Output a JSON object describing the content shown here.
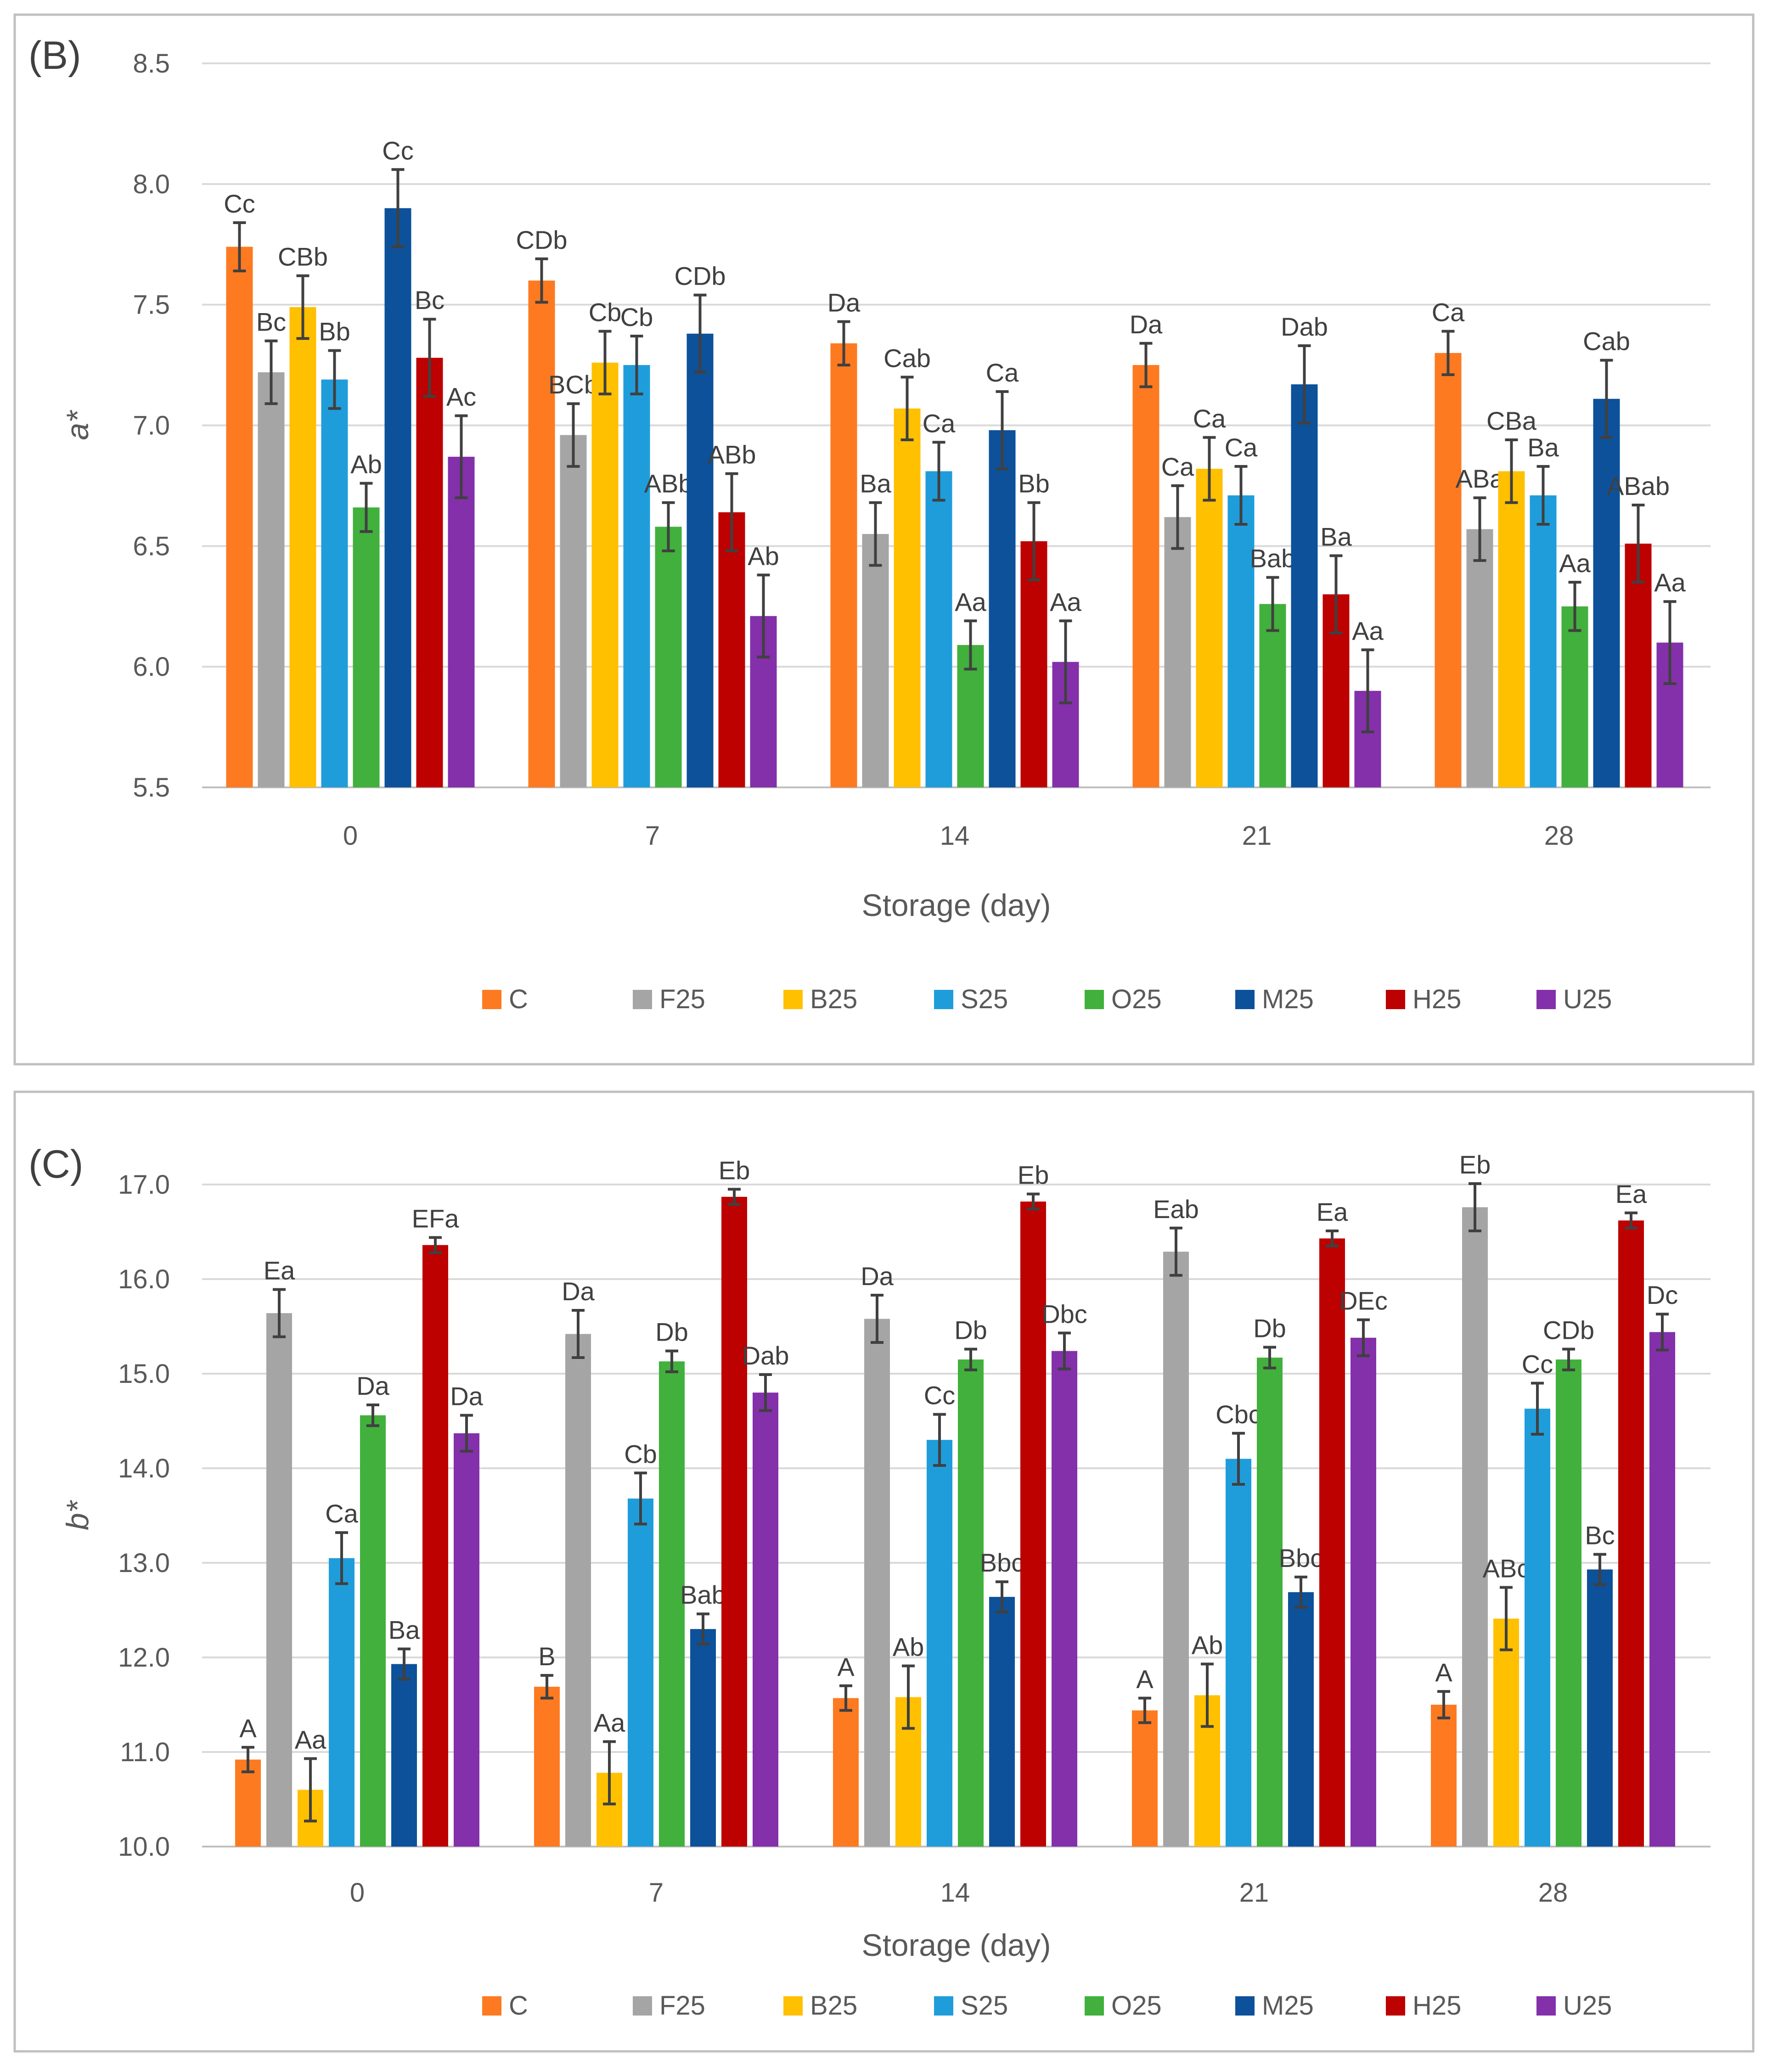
{
  "chart_data": [
    {
      "type": "bar",
      "panel_label": "(B)",
      "title": "",
      "xlabel": "Storage (day)",
      "ylabel": "a*",
      "ylim": [
        5.5,
        8.5
      ],
      "yticks": [
        "5.5",
        "6.0",
        "6.5",
        "7.0",
        "7.5",
        "8.0",
        "8.5"
      ],
      "grid": true,
      "legend_position": "bottom",
      "categories": [
        "0",
        "7",
        "14",
        "21",
        "28"
      ],
      "series": [
        {
          "name": "C",
          "color": "#fd7a21",
          "values": [
            7.74,
            7.6,
            7.34,
            7.25,
            7.3
          ],
          "errors": [
            0.1,
            0.09,
            0.09,
            0.09,
            0.09
          ],
          "labels": [
            "Cc",
            "CDb",
            "Da",
            "Da",
            "Ca"
          ]
        },
        {
          "name": "F25",
          "color": "#a5a5a5",
          "values": [
            7.22,
            6.96,
            6.55,
            6.62,
            6.57
          ],
          "errors": [
            0.13,
            0.13,
            0.13,
            0.13,
            0.13
          ],
          "labels": [
            "Bc",
            "BCb",
            "Ba",
            "Ca",
            "ABa"
          ]
        },
        {
          "name": "B25",
          "color": "#ffc000",
          "values": [
            7.49,
            7.26,
            7.07,
            6.82,
            6.81
          ],
          "errors": [
            0.13,
            0.13,
            0.13,
            0.13,
            0.13
          ],
          "labels": [
            "CBb",
            "Cb",
            "Cab",
            "Ca",
            "CBa"
          ]
        },
        {
          "name": "S25",
          "color": "#1f9ddb",
          "values": [
            7.19,
            7.25,
            6.81,
            6.71,
            6.71
          ],
          "errors": [
            0.12,
            0.12,
            0.12,
            0.12,
            0.12
          ],
          "labels": [
            "Bb",
            "Cb",
            "Ca",
            "Ca",
            "Ba"
          ]
        },
        {
          "name": "O25",
          "color": "#41b03c",
          "values": [
            6.66,
            6.58,
            6.09,
            6.26,
            6.25
          ],
          "errors": [
            0.1,
            0.1,
            0.1,
            0.11,
            0.1
          ],
          "labels": [
            "Ab",
            "ABb",
            "Aa",
            "Bab",
            "Aa"
          ]
        },
        {
          "name": "M25",
          "color": "#0c519a",
          "values": [
            7.9,
            7.38,
            6.98,
            7.17,
            7.11
          ],
          "errors": [
            0.16,
            0.16,
            0.16,
            0.16,
            0.16
          ],
          "labels": [
            "Cc",
            "CDb",
            "Ca",
            "Dab",
            "Cab"
          ]
        },
        {
          "name": "H25",
          "color": "#bd0000",
          "values": [
            7.28,
            6.64,
            6.52,
            6.3,
            6.51
          ],
          "errors": [
            0.16,
            0.16,
            0.16,
            0.16,
            0.16
          ],
          "labels": [
            "Bc",
            "ABb",
            "Bb",
            "Ba",
            "ABab"
          ]
        },
        {
          "name": "U25",
          "color": "#8330aa",
          "values": [
            6.87,
            6.21,
            6.02,
            5.9,
            6.1
          ],
          "errors": [
            0.17,
            0.17,
            0.17,
            0.17,
            0.17
          ],
          "labels": [
            "Ac",
            "Ab",
            "Aa",
            "Aa",
            "Aa"
          ]
        }
      ]
    },
    {
      "type": "bar",
      "panel_label": "(C)",
      "title": "",
      "xlabel": "Storage (day)",
      "ylabel": "b*",
      "ylim": [
        10.0,
        17.0
      ],
      "yticks": [
        "10.0",
        "11.0",
        "12.0",
        "13.0",
        "14.0",
        "15.0",
        "16.0",
        "17.0"
      ],
      "grid": true,
      "legend_position": "bottom",
      "categories": [
        "0",
        "7",
        "14",
        "21",
        "28"
      ],
      "series": [
        {
          "name": "C",
          "color": "#fd7a21",
          "values": [
            10.92,
            11.69,
            11.57,
            11.44,
            11.5
          ],
          "errors": [
            0.13,
            0.12,
            0.13,
            0.13,
            0.14
          ],
          "labels": [
            "A",
            "B",
            "A",
            "A",
            "A"
          ]
        },
        {
          "name": "F25",
          "color": "#a5a5a5",
          "values": [
            15.64,
            15.42,
            15.58,
            16.29,
            16.76
          ],
          "errors": [
            0.25,
            0.25,
            0.25,
            0.25,
            0.25
          ],
          "labels": [
            "Ea",
            "Da",
            "Da",
            "Eab",
            "Eb"
          ]
        },
        {
          "name": "B25",
          "color": "#ffc000",
          "values": [
            10.6,
            10.78,
            11.58,
            11.6,
            12.41
          ],
          "errors": [
            0.33,
            0.33,
            0.33,
            0.33,
            0.33
          ],
          "labels": [
            "Aa",
            "Aa",
            "Ab",
            "Ab",
            "ABc"
          ]
        },
        {
          "name": "S25",
          "color": "#1f9ddb",
          "values": [
            13.05,
            13.68,
            14.3,
            14.1,
            14.63
          ],
          "errors": [
            0.27,
            0.27,
            0.27,
            0.27,
            0.27
          ],
          "labels": [
            "Ca",
            "Cb",
            "Cc",
            "Cbc",
            "Cc"
          ]
        },
        {
          "name": "O25",
          "color": "#41b03c",
          "values": [
            14.56,
            15.13,
            15.15,
            15.17,
            15.15
          ],
          "errors": [
            0.11,
            0.11,
            0.11,
            0.11,
            0.11
          ],
          "labels": [
            "Da",
            "Db",
            "Db",
            "Db",
            "CDb"
          ]
        },
        {
          "name": "M25",
          "color": "#0c519a",
          "values": [
            11.93,
            12.3,
            12.64,
            12.69,
            12.93
          ],
          "errors": [
            0.16,
            0.16,
            0.16,
            0.16,
            0.16
          ],
          "labels": [
            "Ba",
            "Bab",
            "Bbc",
            "Bbc",
            "Bc"
          ]
        },
        {
          "name": "H25",
          "color": "#bd0000",
          "values": [
            16.36,
            16.87,
            16.82,
            16.43,
            16.62
          ],
          "errors": [
            0.08,
            0.08,
            0.08,
            0.08,
            0.08
          ],
          "labels": [
            "EFa",
            "Eb",
            "Eb",
            "Ea",
            "Ea"
          ]
        },
        {
          "name": "U25",
          "color": "#8330aa",
          "values": [
            14.37,
            14.8,
            15.24,
            15.38,
            15.44
          ],
          "errors": [
            0.19,
            0.19,
            0.19,
            0.19,
            0.19
          ],
          "labels": [
            "Da",
            "Dab",
            "Dbc",
            "DEc",
            "Dc"
          ]
        }
      ]
    }
  ]
}
